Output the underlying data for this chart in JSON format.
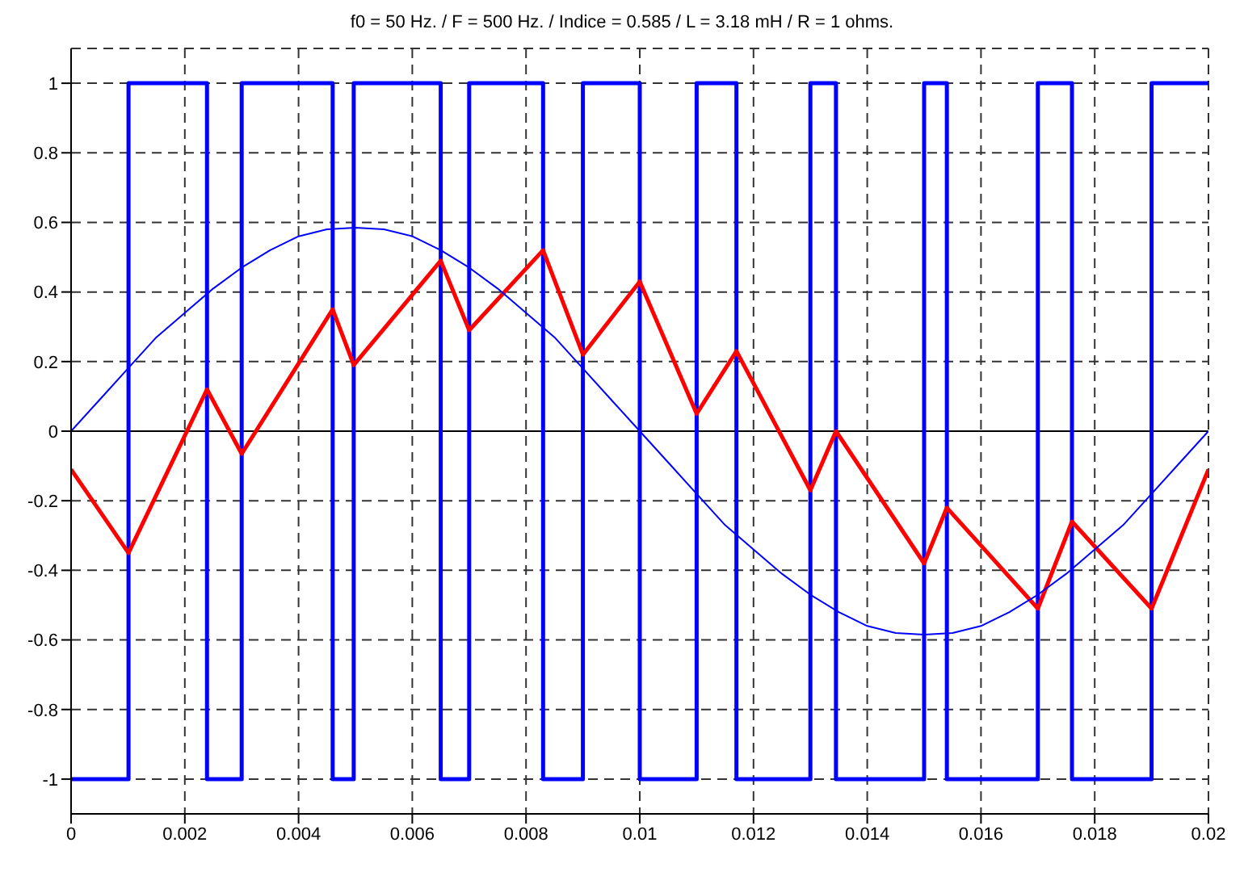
{
  "chart_data": {
    "type": "line",
    "title": "f0 = 50 Hz. / F = 500 Hz. / Indice = 0.585 / L = 3.18 mH / R = 1 ohms.",
    "series": [
      {
        "type": "step",
        "color": "#0000ff",
        "x": [
          0,
          0.00101,
          0.00239,
          0.003,
          0.0046,
          0.00497,
          0.0065,
          0.007,
          0.0083,
          0.009,
          0.01,
          0.011,
          0.0117,
          0.013,
          0.01345,
          0.015,
          0.0154,
          0.017,
          0.0176,
          0.019,
          0.02
        ],
        "values": [
          -1,
          1,
          -1,
          1,
          -1,
          1,
          -1,
          1,
          -1,
          1,
          -1,
          1,
          -1,
          1,
          -1,
          1,
          -1,
          1,
          -1,
          1,
          1
        ]
      },
      {
        "color": "#ff0000",
        "x": [
          0,
          0.00101,
          0.00239,
          0.003,
          0.0046,
          0.00497,
          0.0065,
          0.007,
          0.0083,
          0.009,
          0.01,
          0.011,
          0.0117,
          0.013,
          0.01345,
          0.015,
          0.0154,
          0.017,
          0.0176,
          0.019,
          0.02
        ],
        "values": [
          -0.11,
          -0.35,
          0.12,
          -0.065,
          0.35,
          0.19,
          0.49,
          0.29,
          0.52,
          0.22,
          0.43,
          0.05,
          0.23,
          -0.17,
          0,
          -0.38,
          -0.22,
          -0.51,
          -0.26,
          -0.51,
          -0.11
        ]
      },
      {
        "color": "#0000ff",
        "x": [
          0,
          0.0005,
          0.001,
          0.0015,
          0.002,
          0.0025,
          0.003,
          0.0035,
          0.004,
          0.0045,
          0.005,
          0.0055,
          0.006,
          0.0065,
          0.007,
          0.0075,
          0.008,
          0.0085,
          0.009,
          0.0095,
          0.01,
          0.0105,
          0.011,
          0.0115,
          0.012,
          0.0125,
          0.013,
          0.0135,
          0.014,
          0.0145,
          0.015,
          0.0155,
          0.016,
          0.0165,
          0.017,
          0.0175,
          0.018,
          0.0185,
          0.019,
          0.0195,
          0.02
        ],
        "values": [
          0,
          0.09,
          0.18,
          0.27,
          0.34,
          0.41,
          0.47,
          0.52,
          0.56,
          0.58,
          0.585,
          0.58,
          0.56,
          0.52,
          0.47,
          0.41,
          0.34,
          0.27,
          0.18,
          0.09,
          0,
          -0.09,
          -0.18,
          -0.27,
          -0.34,
          -0.41,
          -0.47,
          -0.52,
          -0.56,
          -0.58,
          -0.585,
          -0.58,
          -0.56,
          -0.52,
          -0.47,
          -0.41,
          -0.34,
          -0.27,
          -0.18,
          -0.09,
          0
        ]
      }
    ],
    "xlim": [
      0,
      0.02
    ],
    "xticks": [
      0,
      0.002,
      0.004,
      0.006,
      0.008,
      0.01,
      0.012,
      0.014,
      0.016,
      0.018,
      0.02
    ],
    "ylim": [
      -1.1,
      1.1
    ],
    "yticks": [
      -1,
      -0.8,
      -0.6,
      -0.4,
      -0.2,
      0,
      0.2,
      0.4,
      0.6,
      0.8,
      1
    ],
    "grid": true,
    "line_style": "solid",
    "marker": "none",
    "ref_lines": [
      {
        "axis": "y",
        "value": 0,
        "color": "#000000"
      }
    ]
  }
}
